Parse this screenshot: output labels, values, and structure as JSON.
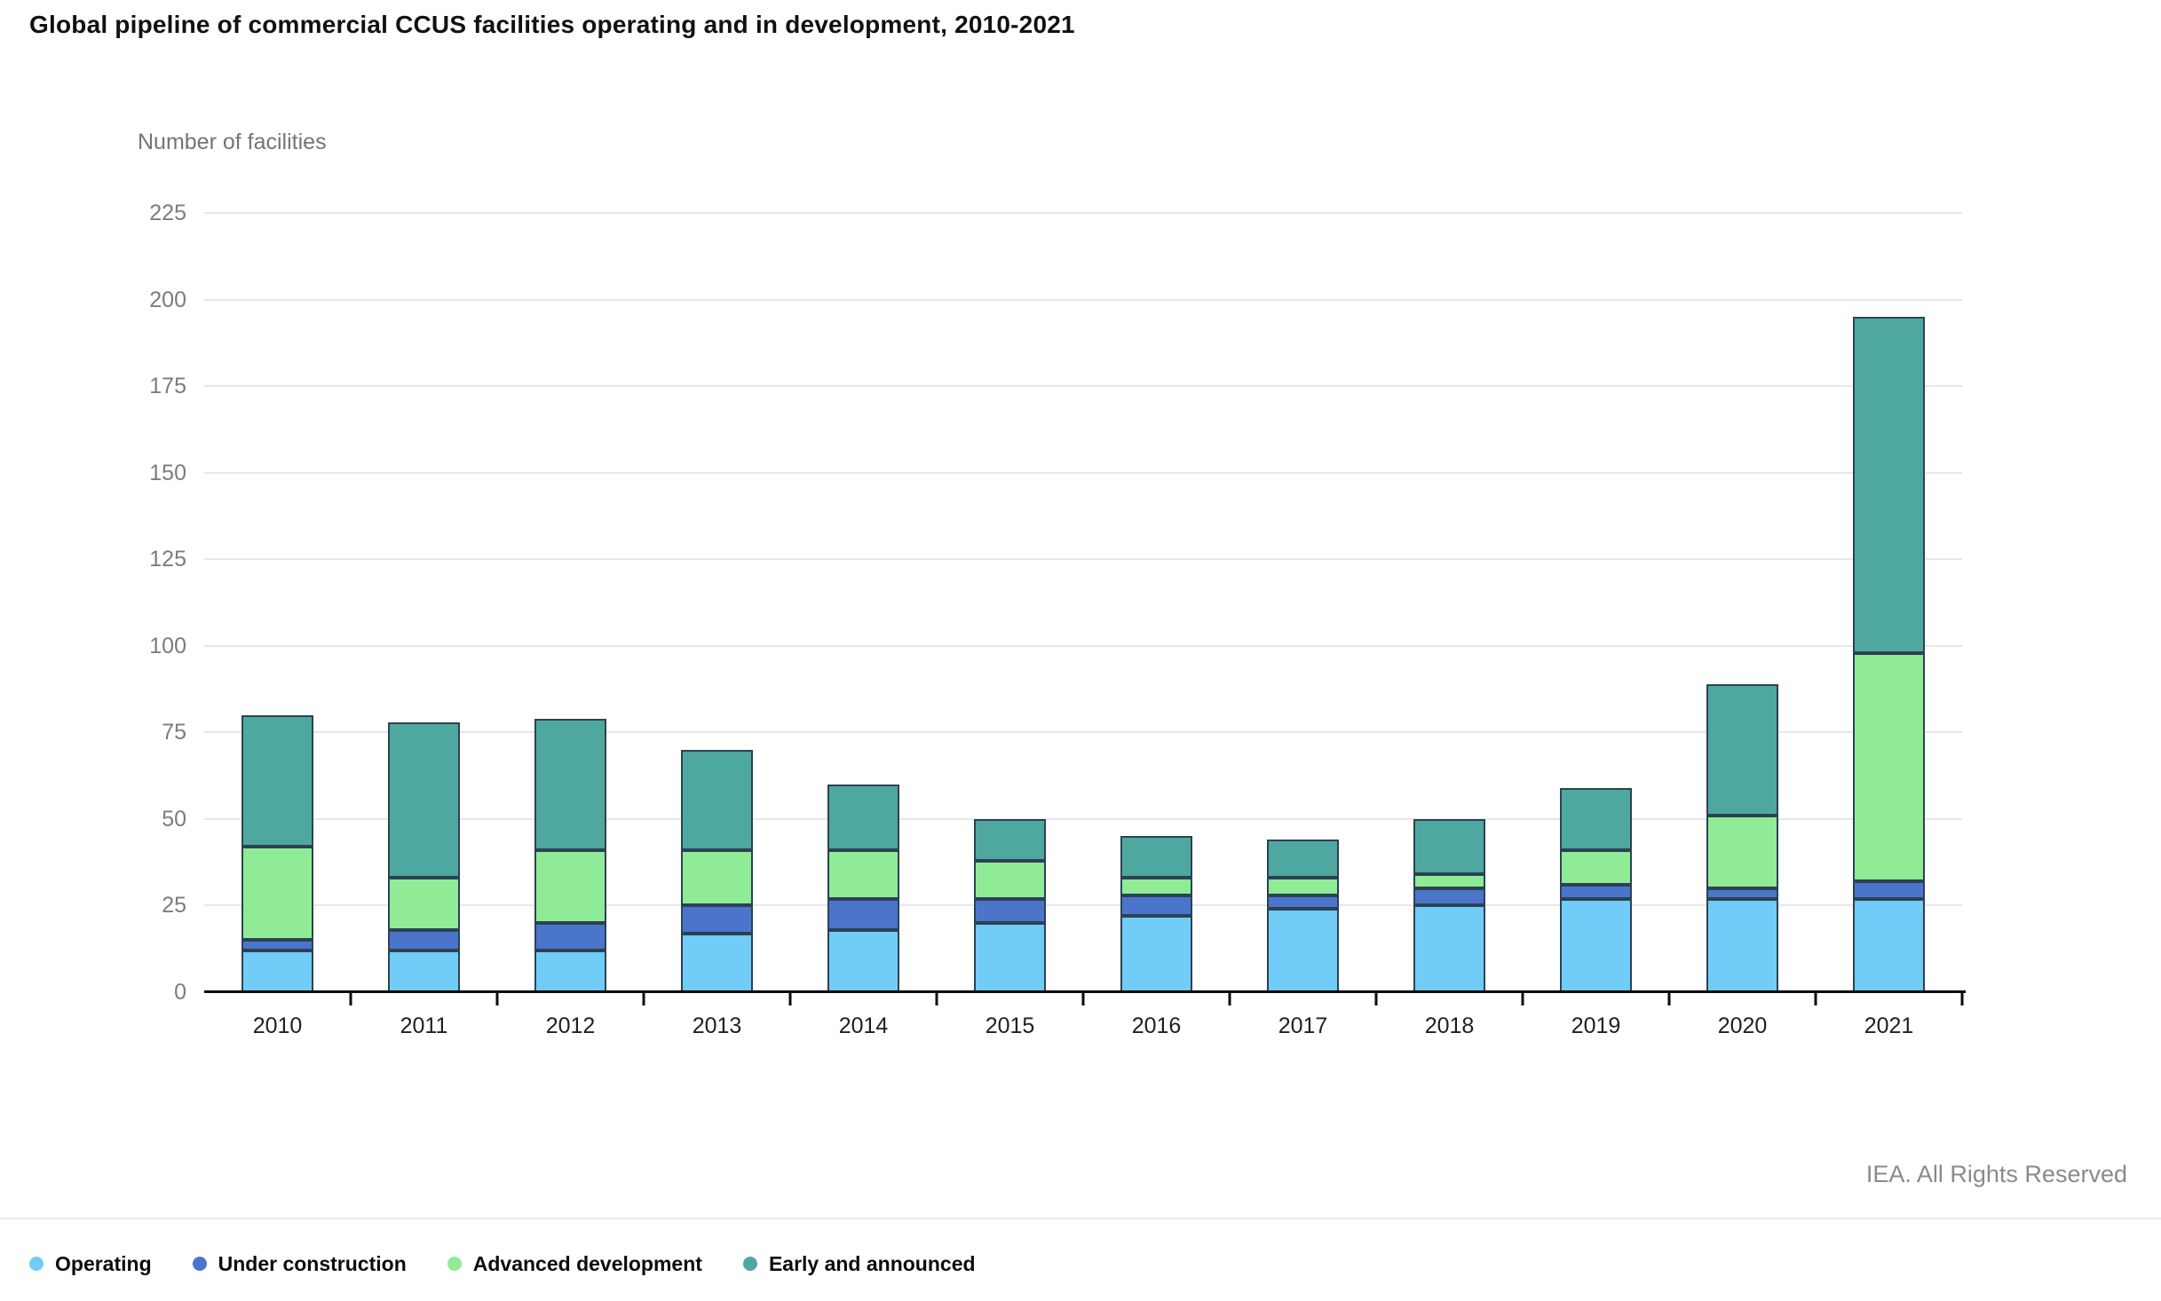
{
  "page": {
    "footer_credit": "IEA. All Rights Reserved"
  },
  "chart_data": {
    "type": "bar",
    "stacked": true,
    "title": "Global pipeline of commercial CCUS facilities operating and in development, 2010-2021",
    "xlabel": "",
    "ylabel": "Number of facilities",
    "categories": [
      "2010",
      "2011",
      "2012",
      "2013",
      "2014",
      "2015",
      "2016",
      "2017",
      "2018",
      "2019",
      "2020",
      "2021"
    ],
    "series": [
      {
        "name": "Operating",
        "color": "#71CCF7",
        "values": [
          12,
          12,
          12,
          17,
          18,
          20,
          22,
          24,
          25,
          27,
          27,
          27
        ]
      },
      {
        "name": "Under construction",
        "color": "#4A75CB",
        "values": [
          3,
          6,
          8,
          8,
          9,
          7,
          6,
          4,
          5,
          4,
          3,
          5
        ]
      },
      {
        "name": "Advanced development",
        "color": "#90EB97",
        "values": [
          27,
          15,
          21,
          16,
          14,
          11,
          5,
          5,
          4,
          10,
          21,
          66
        ]
      },
      {
        "name": "Early and announced",
        "color": "#4EA8A0",
        "values": [
          38,
          45,
          38,
          29,
          19,
          12,
          12,
          11,
          16,
          18,
          38,
          97
        ]
      }
    ],
    "totals": [
      80,
      78,
      79,
      70,
      60,
      50,
      45,
      44,
      50,
      59,
      89,
      195
    ],
    "ylim": [
      0,
      225
    ],
    "yticks": [
      0,
      25,
      50,
      75,
      100,
      125,
      150,
      175,
      200,
      225
    ],
    "grid": "horizontal",
    "legend_position": "bottom-left",
    "bar_border_color": "#2c4252",
    "gridline_color": "#e7e7e7",
    "axis_color": "#0b0b0b"
  }
}
